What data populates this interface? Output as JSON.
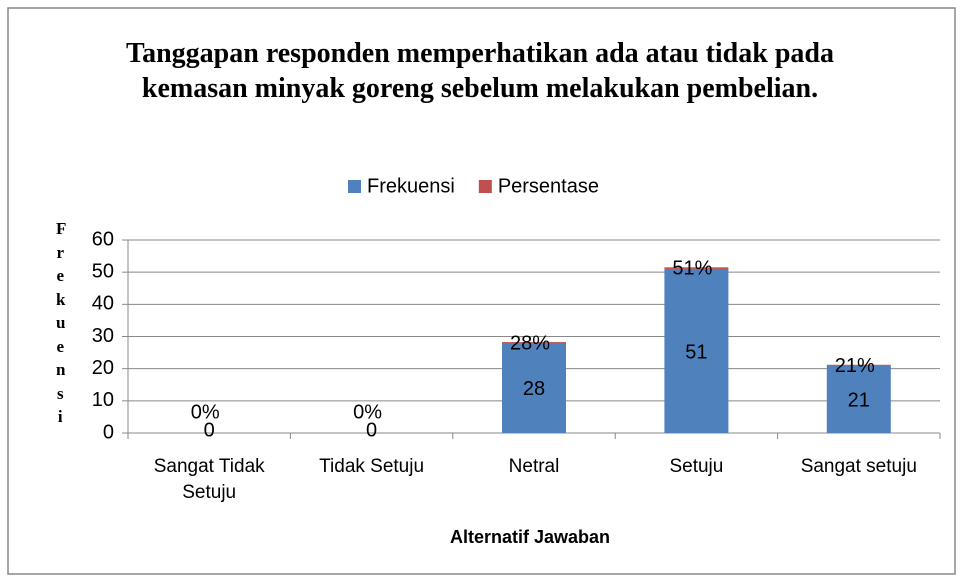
{
  "chart_data": {
    "type": "stacked_bar",
    "title": "Tanggapan responden memperhatikan ada atau tidak pada kemasan minyak goreng sebelum melakukan pembelian.",
    "x_label": "Alternatif Jawaban",
    "y_label": "Frekuensi",
    "categories": [
      "Sangat Tidak Setuju",
      "Tidak Setuju",
      "Netral",
      "Setuju",
      "Sangat setuju"
    ],
    "series": [
      {
        "name": "Frekuensi",
        "color": "#4f81bd",
        "values": [
          0,
          0,
          28,
          51,
          21
        ]
      },
      {
        "name": "Persentase",
        "color": "#c0504d",
        "values": [
          0,
          0,
          0.28,
          0.51,
          0.21
        ],
        "value_labels": [
          "0%",
          "0%",
          "28%",
          "51%",
          "21%"
        ]
      }
    ],
    "ylim": [
      0,
      60
    ],
    "yticks": [
      0,
      10,
      20,
      30,
      40,
      50,
      60
    ],
    "grid": true,
    "legend": "top"
  }
}
